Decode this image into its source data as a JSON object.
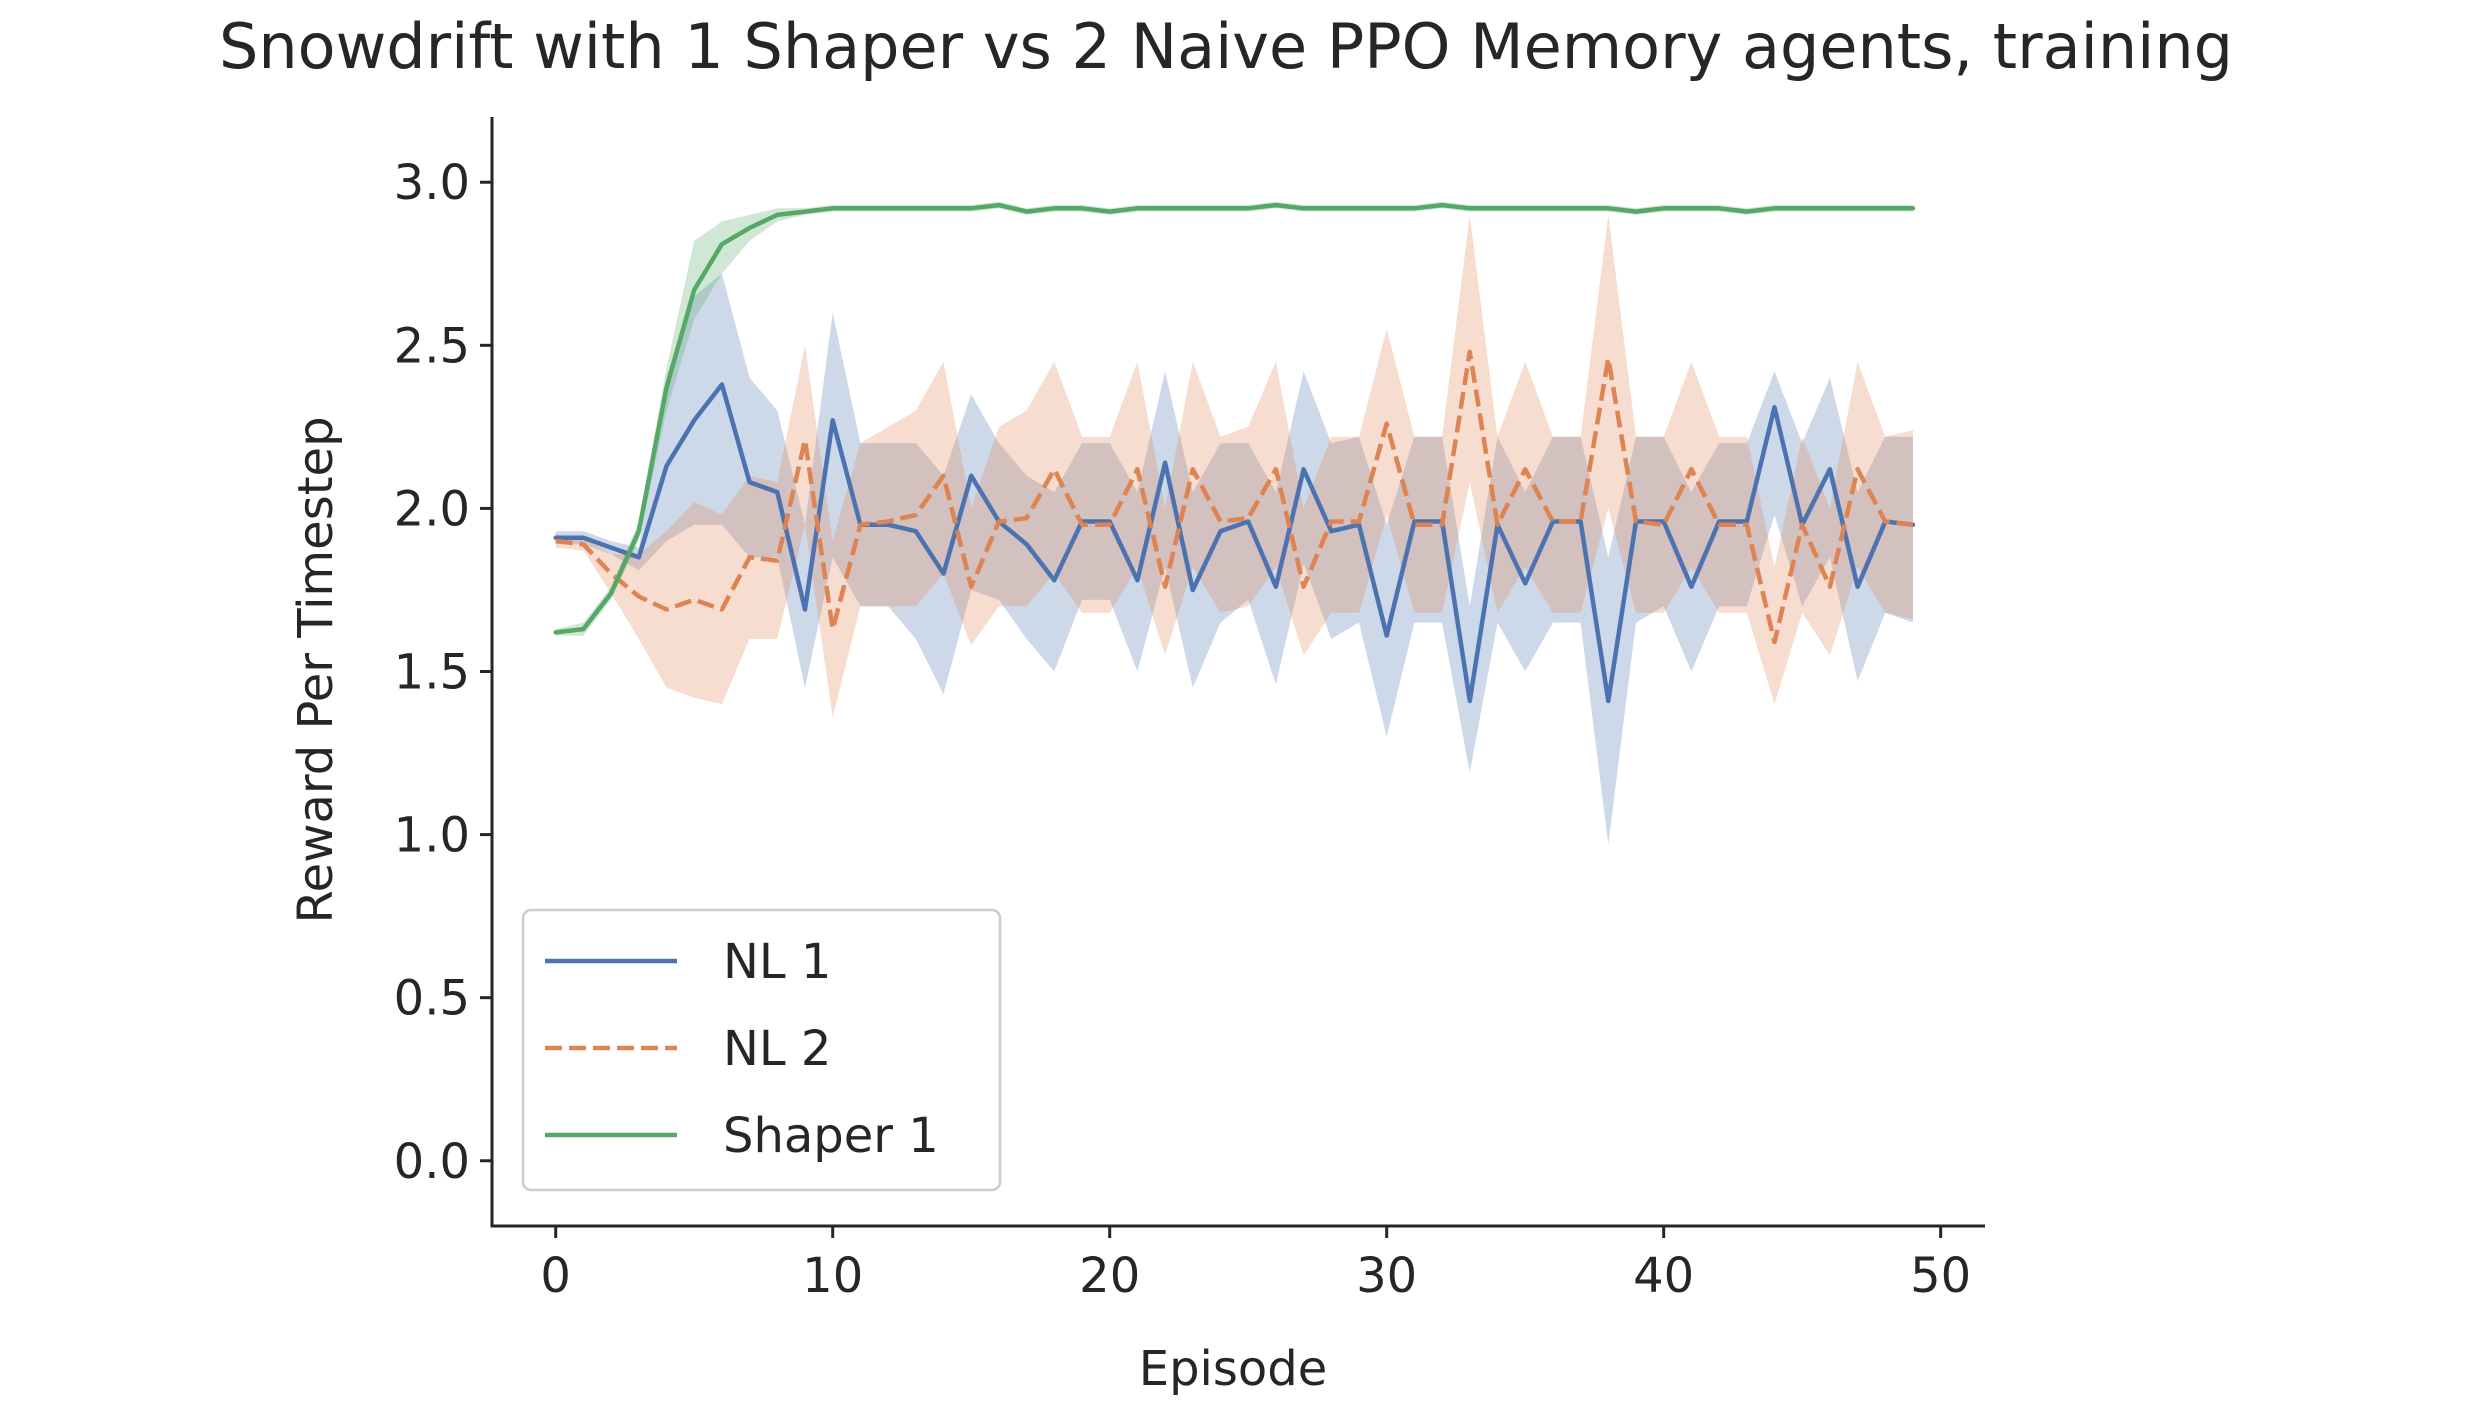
{
  "chart_data": {
    "type": "line",
    "title": "Snowdrift with 1 Shaper vs 2 Naive PPO Memory agents, training",
    "xlabel": "Episode",
    "ylabel": "Reward Per Timestep",
    "xlim": [
      -2.3,
      51.6
    ],
    "ylim": [
      -0.2,
      3.2
    ],
    "xticks": [
      0,
      10,
      20,
      30,
      40,
      50
    ],
    "yticks": [
      0.0,
      0.5,
      1.0,
      1.5,
      2.0,
      2.5,
      3.0
    ],
    "xtick_labels": [
      "0",
      "10",
      "20",
      "30",
      "40",
      "50"
    ],
    "ytick_labels": [
      "0.0",
      "0.5",
      "1.0",
      "1.5",
      "2.0",
      "2.5",
      "3.0"
    ],
    "grid": false,
    "legend_position": "lower-left",
    "x": [
      0,
      1,
      2,
      3,
      4,
      5,
      6,
      7,
      8,
      9,
      10,
      11,
      12,
      13,
      14,
      15,
      16,
      17,
      18,
      19,
      20,
      21,
      22,
      23,
      24,
      25,
      26,
      27,
      28,
      29,
      30,
      31,
      32,
      33,
      34,
      35,
      36,
      37,
      38,
      39,
      40,
      41,
      42,
      43,
      44,
      45,
      46,
      47,
      48,
      49
    ],
    "series": [
      {
        "name": "NL 1",
        "color": "#4c72b0",
        "style": "solid",
        "values": [
          1.91,
          1.91,
          1.88,
          1.85,
          2.13,
          2.27,
          2.38,
          2.08,
          2.05,
          1.69,
          2.27,
          1.95,
          1.95,
          1.93,
          1.8,
          2.1,
          1.96,
          1.89,
          1.78,
          1.96,
          1.96,
          1.78,
          2.14,
          1.75,
          1.93,
          1.96,
          1.76,
          2.12,
          1.93,
          1.95,
          1.61,
          1.96,
          1.96,
          1.41,
          1.95,
          1.77,
          1.96,
          1.96,
          1.41,
          1.96,
          1.96,
          1.76,
          1.96,
          1.96,
          2.31,
          1.95,
          2.12,
          1.76,
          1.96,
          1.95
        ],
        "lower": [
          1.89,
          1.89,
          1.86,
          1.81,
          1.9,
          1.95,
          1.95,
          1.85,
          1.85,
          1.45,
          1.85,
          1.7,
          1.7,
          1.6,
          1.43,
          1.75,
          1.72,
          1.6,
          1.5,
          1.72,
          1.72,
          1.5,
          1.82,
          1.45,
          1.65,
          1.72,
          1.46,
          1.83,
          1.6,
          1.65,
          1.3,
          1.65,
          1.65,
          1.19,
          1.65,
          1.5,
          1.65,
          1.65,
          0.97,
          1.65,
          1.7,
          1.5,
          1.7,
          1.7,
          1.98,
          1.7,
          1.85,
          1.47,
          1.68,
          1.65
        ],
        "upper": [
          1.93,
          1.93,
          1.9,
          1.88,
          2.4,
          2.65,
          2.72,
          2.4,
          2.3,
          1.95,
          2.6,
          2.2,
          2.2,
          2.2,
          2.1,
          2.35,
          2.2,
          2.1,
          2.05,
          2.2,
          2.2,
          2.05,
          2.42,
          2.05,
          2.2,
          2.2,
          2.05,
          2.42,
          2.2,
          2.22,
          1.95,
          2.22,
          2.22,
          1.7,
          2.22,
          2.05,
          2.22,
          2.22,
          1.85,
          2.22,
          2.22,
          2.05,
          2.2,
          2.2,
          2.42,
          2.2,
          2.4,
          2.05,
          2.22,
          2.22
        ]
      },
      {
        "name": "NL 2",
        "color": "#dd8452",
        "style": "dashed",
        "values": [
          1.9,
          1.89,
          1.8,
          1.73,
          1.69,
          1.72,
          1.69,
          1.85,
          1.84,
          2.21,
          1.63,
          1.95,
          1.96,
          1.98,
          2.1,
          1.76,
          1.96,
          1.97,
          2.12,
          1.95,
          1.95,
          2.12,
          1.76,
          2.12,
          1.96,
          1.97,
          2.12,
          1.76,
          1.96,
          1.96,
          2.26,
          1.95,
          1.95,
          2.48,
          1.95,
          2.12,
          1.96,
          1.96,
          2.46,
          1.96,
          1.95,
          2.12,
          1.95,
          1.95,
          1.59,
          1.95,
          1.76,
          2.12,
          1.96,
          1.95
        ],
        "lower": [
          1.88,
          1.87,
          1.74,
          1.6,
          1.45,
          1.42,
          1.4,
          1.6,
          1.6,
          1.95,
          1.36,
          1.7,
          1.7,
          1.7,
          1.8,
          1.58,
          1.7,
          1.7,
          1.8,
          1.68,
          1.68,
          1.82,
          1.55,
          1.82,
          1.68,
          1.7,
          1.82,
          1.55,
          1.68,
          1.68,
          1.98,
          1.68,
          1.68,
          2.08,
          1.68,
          1.82,
          1.68,
          1.68,
          2.0,
          1.68,
          1.68,
          1.82,
          1.68,
          1.68,
          1.4,
          1.68,
          1.55,
          1.82,
          1.68,
          1.66
        ],
        "upper": [
          1.92,
          1.91,
          1.86,
          1.86,
          1.93,
          2.02,
          1.98,
          2.1,
          2.08,
          2.5,
          1.9,
          2.2,
          2.25,
          2.3,
          2.45,
          2.0,
          2.25,
          2.3,
          2.45,
          2.22,
          2.22,
          2.45,
          2.0,
          2.45,
          2.22,
          2.25,
          2.45,
          2.0,
          2.22,
          2.22,
          2.55,
          2.22,
          2.22,
          2.9,
          2.22,
          2.45,
          2.22,
          2.22,
          2.9,
          2.22,
          2.22,
          2.45,
          2.22,
          2.22,
          1.82,
          2.22,
          2.0,
          2.45,
          2.22,
          2.24
        ]
      },
      {
        "name": "Shaper 1",
        "color": "#55a868",
        "style": "solid",
        "values": [
          1.62,
          1.63,
          1.74,
          1.93,
          2.37,
          2.67,
          2.81,
          2.86,
          2.9,
          2.91,
          2.92,
          2.92,
          2.92,
          2.92,
          2.92,
          2.92,
          2.93,
          2.91,
          2.92,
          2.92,
          2.91,
          2.92,
          2.92,
          2.92,
          2.92,
          2.92,
          2.93,
          2.92,
          2.92,
          2.92,
          2.92,
          2.92,
          2.93,
          2.92,
          2.92,
          2.92,
          2.92,
          2.92,
          2.92,
          2.91,
          2.92,
          2.92,
          2.92,
          2.91,
          2.92,
          2.92,
          2.92,
          2.92,
          2.92,
          2.92
        ],
        "lower": [
          1.61,
          1.61,
          1.72,
          1.9,
          2.3,
          2.58,
          2.72,
          2.82,
          2.88,
          2.9,
          2.91,
          2.91,
          2.91,
          2.91,
          2.91,
          2.91,
          2.92,
          2.9,
          2.91,
          2.91,
          2.9,
          2.91,
          2.91,
          2.91,
          2.91,
          2.91,
          2.92,
          2.91,
          2.91,
          2.91,
          2.91,
          2.91,
          2.92,
          2.91,
          2.91,
          2.91,
          2.91,
          2.91,
          2.91,
          2.9,
          2.91,
          2.91,
          2.91,
          2.9,
          2.91,
          2.91,
          2.91,
          2.91,
          2.91,
          2.91
        ],
        "upper": [
          1.63,
          1.65,
          1.76,
          1.96,
          2.43,
          2.82,
          2.88,
          2.9,
          2.92,
          2.92,
          2.93,
          2.93,
          2.93,
          2.93,
          2.93,
          2.93,
          2.94,
          2.92,
          2.93,
          2.93,
          2.92,
          2.93,
          2.93,
          2.93,
          2.93,
          2.93,
          2.94,
          2.93,
          2.93,
          2.93,
          2.93,
          2.93,
          2.94,
          2.93,
          2.93,
          2.93,
          2.93,
          2.93,
          2.93,
          2.92,
          2.93,
          2.93,
          2.93,
          2.92,
          2.93,
          2.93,
          2.93,
          2.93,
          2.93,
          2.93
        ]
      }
    ]
  }
}
